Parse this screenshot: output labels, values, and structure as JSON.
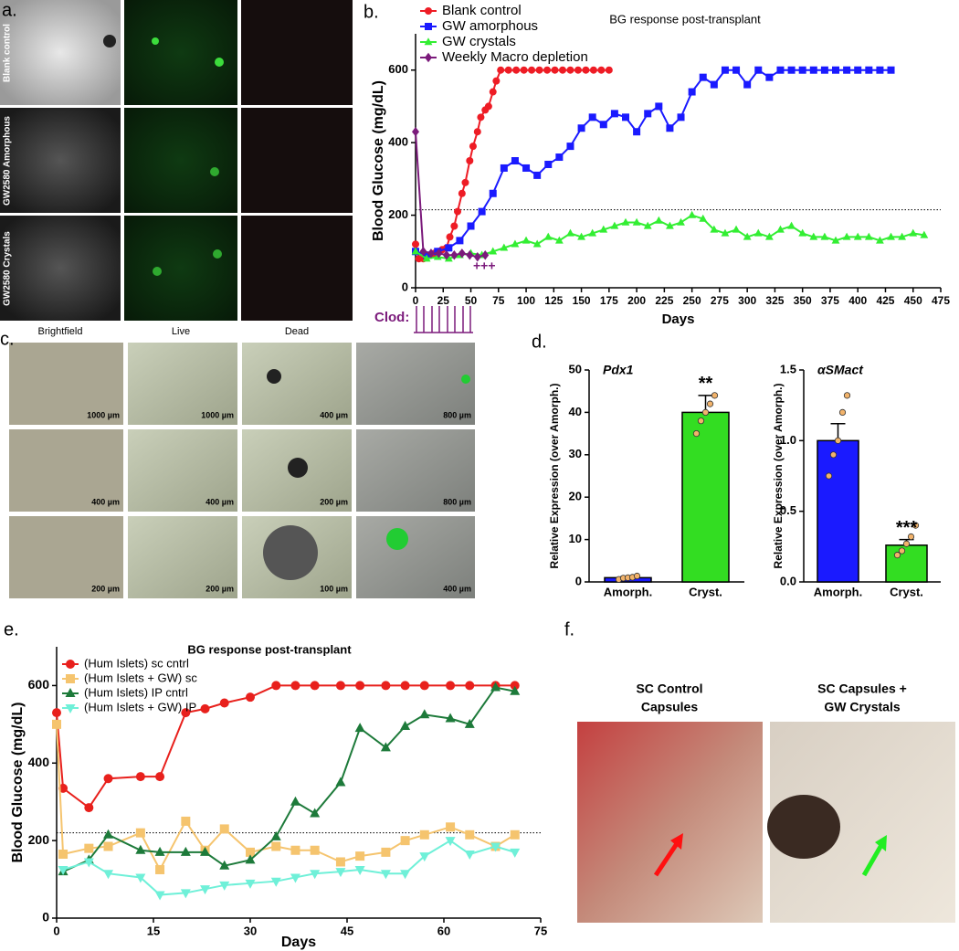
{
  "panels": {
    "a": {
      "letter": "a.",
      "row_labels": [
        "Blank control",
        "GW2580 Amorphous",
        "GW2580 Crystals"
      ],
      "column_labels": [
        "Brightfield",
        "Live",
        "Dead"
      ]
    },
    "b": {
      "letter": "b.",
      "treatment_label": "Clod:",
      "marker_label": "+++"
    },
    "c": {
      "letter": "c.",
      "scale_labels": [
        [
          "1000 µm",
          "1000 µm",
          "400 µm",
          "800 µm"
        ],
        [
          "400 µm",
          "400 µm",
          "200 µm",
          "800 µm"
        ],
        [
          "200 µm",
          "200 µm",
          "100 µm",
          "400 µm"
        ]
      ]
    },
    "d": {
      "letter": "d."
    },
    "e": {
      "letter": "e."
    },
    "f": {
      "letter": "f.",
      "photo_labels": [
        [
          "SC Control",
          "Capsules"
        ],
        [
          "SC Capsules +",
          "GW Crystals"
        ]
      ]
    }
  },
  "chart_data": [
    {
      "type": "line",
      "title": "BG response post-transplant",
      "xlabel": "Days",
      "ylabel": "Blood Glucose (mg/dL)",
      "xlim": [
        0,
        475
      ],
      "xticks": [
        0,
        25,
        50,
        75,
        100,
        125,
        150,
        175,
        200,
        225,
        250,
        275,
        300,
        325,
        350,
        375,
        400,
        425,
        450,
        475
      ],
      "ylim": [
        0,
        700
      ],
      "yticks": [
        0,
        200,
        400,
        600
      ],
      "reference_line": 215,
      "legend": "upper left",
      "series": [
        {
          "name": "Blank control",
          "color": "#ee1c25",
          "marker": "circle",
          "x": [
            0,
            3,
            7,
            10,
            14,
            17,
            21,
            24,
            28,
            31,
            35,
            38,
            42,
            45,
            49,
            52,
            56,
            59,
            63,
            66,
            70,
            73,
            77,
            84,
            91,
            98,
            105,
            112,
            119,
            126,
            133,
            140,
            147,
            154,
            161,
            168,
            175
          ],
          "values": [
            120,
            80,
            80,
            85,
            90,
            95,
            100,
            105,
            110,
            140,
            170,
            210,
            260,
            290,
            350,
            390,
            430,
            470,
            490,
            500,
            540,
            570,
            600,
            600,
            600,
            600,
            600,
            600,
            600,
            600,
            600,
            600,
            600,
            600,
            600,
            600,
            600
          ]
        },
        {
          "name": "GW amorphous",
          "color": "#1a1aff",
          "marker": "square",
          "x": [
            0,
            10,
            20,
            30,
            40,
            50,
            60,
            70,
            80,
            90,
            100,
            110,
            120,
            130,
            140,
            150,
            160,
            170,
            180,
            190,
            200,
            210,
            220,
            230,
            240,
            250,
            260,
            270,
            280,
            290,
            300,
            310,
            320,
            330,
            340,
            350,
            360,
            370,
            380,
            390,
            400,
            410,
            420,
            430
          ],
          "values": [
            100,
            90,
            100,
            110,
            130,
            170,
            210,
            260,
            330,
            350,
            330,
            310,
            340,
            360,
            390,
            440,
            470,
            450,
            480,
            470,
            430,
            480,
            500,
            440,
            470,
            540,
            580,
            560,
            600,
            600,
            560,
            600,
            580,
            600,
            600,
            600,
            600,
            600,
            600,
            600,
            600,
            600,
            600,
            600
          ]
        },
        {
          "name": "GW crystals",
          "color": "#33ee33",
          "marker": "triangle",
          "x": [
            0,
            10,
            20,
            30,
            40,
            50,
            60,
            70,
            80,
            90,
            100,
            110,
            120,
            130,
            140,
            150,
            160,
            170,
            180,
            190,
            200,
            210,
            220,
            230,
            240,
            250,
            260,
            270,
            280,
            290,
            300,
            310,
            320,
            330,
            340,
            350,
            360,
            370,
            380,
            390,
            400,
            410,
            420,
            430,
            440,
            450,
            460
          ],
          "values": [
            100,
            80,
            85,
            80,
            90,
            95,
            90,
            100,
            110,
            120,
            130,
            120,
            140,
            130,
            150,
            140,
            150,
            160,
            170,
            180,
            180,
            170,
            185,
            170,
            180,
            200,
            190,
            160,
            150,
            160,
            140,
            150,
            140,
            160,
            170,
            150,
            140,
            140,
            130,
            140,
            140,
            140,
            130,
            140,
            140,
            150,
            145
          ]
        },
        {
          "name": "Weekly Macro depletion",
          "color": "#7b1a7b",
          "marker": "diamond",
          "x": [
            0,
            7,
            14,
            21,
            28,
            35,
            42,
            49,
            56,
            63
          ],
          "values": [
            430,
            100,
            95,
            95,
            90,
            90,
            95,
            90,
            85,
            90
          ]
        }
      ]
    },
    {
      "type": "bar",
      "title": "Pdx1",
      "ylabel": "Relative Expression (over Amorph.)",
      "categories": [
        "Amorph.",
        "Cryst."
      ],
      "values": [
        1,
        40
      ],
      "errors": [
        0.3,
        4
      ],
      "colors": [
        "#1a1aff",
        "#33dd22"
      ],
      "points": [
        [
          0.6,
          0.9,
          1.0,
          1.1,
          1.4
        ],
        [
          35,
          38,
          40,
          42,
          44
        ]
      ],
      "point_color": "#f2b36b",
      "annotation": "**",
      "ylim": [
        0,
        50
      ],
      "yticks": [
        0,
        10,
        20,
        30,
        40,
        50
      ]
    },
    {
      "type": "bar",
      "title": "αSMact",
      "ylabel": "Relative Expression (over Amorph.)",
      "categories": [
        "Amorph.",
        "Cryst."
      ],
      "values": [
        1.0,
        0.26
      ],
      "errors": [
        0.12,
        0.04
      ],
      "colors": [
        "#1a1aff",
        "#33dd22"
      ],
      "points": [
        [
          0.75,
          0.9,
          1.0,
          1.2,
          1.32
        ],
        [
          0.19,
          0.22,
          0.27,
          0.32,
          0.4
        ]
      ],
      "point_color": "#f2b36b",
      "annotation": "***",
      "ylim": [
        0,
        1.5
      ],
      "yticks": [
        {
          "value": 0,
          "label": "0.0"
        },
        0.5,
        {
          "value": 1,
          "label": "1.0"
        },
        1.5
      ]
    },
    {
      "type": "line",
      "title": "BG response post-transplant",
      "xlabel": "Days",
      "ylabel": "Blood Glucose (mg/dL)",
      "xlim": [
        0,
        75
      ],
      "xticks": [
        0,
        15,
        30,
        45,
        60,
        75
      ],
      "ylim": [
        0,
        700
      ],
      "yticks": [
        0,
        200,
        400,
        600
      ],
      "reference_line": 220,
      "legend": "upper left",
      "series": [
        {
          "name": "(Hum Islets) sc cntrl",
          "color": "#e8201c",
          "marker": "circle",
          "x": [
            0,
            1,
            5,
            8,
            13,
            16,
            20,
            23,
            26,
            30,
            34,
            37,
            40,
            44,
            47,
            51,
            54,
            57,
            61,
            64,
            68,
            71
          ],
          "values": [
            530,
            335,
            285,
            360,
            365,
            365,
            530,
            540,
            555,
            570,
            600,
            600,
            600,
            600,
            600,
            600,
            600,
            600,
            600,
            600,
            600,
            600
          ]
        },
        {
          "name": "(Hum Islets + GW) sc",
          "color": "#f5c46e",
          "marker": "square",
          "x": [
            0,
            1,
            5,
            8,
            13,
            16,
            20,
            23,
            26,
            30,
            34,
            37,
            40,
            44,
            47,
            51,
            54,
            57,
            61,
            64,
            68,
            71
          ],
          "values": [
            500,
            165,
            180,
            185,
            220,
            125,
            250,
            175,
            230,
            170,
            185,
            175,
            175,
            145,
            160,
            170,
            200,
            215,
            235,
            215,
            185,
            215
          ]
        },
        {
          "name": "(Hum Islets) IP cntrl",
          "color": "#1d7a3a",
          "marker": "triangle",
          "x": [
            1,
            5,
            8,
            13,
            16,
            20,
            23,
            26,
            30,
            34,
            37,
            40,
            44,
            47,
            51,
            54,
            57,
            61,
            64,
            68,
            71
          ],
          "values": [
            120,
            150,
            215,
            175,
            170,
            170,
            170,
            135,
            150,
            210,
            300,
            270,
            350,
            490,
            440,
            495,
            525,
            515,
            500,
            595,
            585
          ]
        },
        {
          "name": "(Hum Islets + GW) IP",
          "color": "#6ff0d8",
          "marker": "triangle-down",
          "x": [
            1,
            5,
            8,
            13,
            16,
            20,
            23,
            26,
            30,
            34,
            37,
            40,
            44,
            47,
            51,
            54,
            57,
            61,
            64,
            68,
            71
          ],
          "values": [
            125,
            145,
            115,
            105,
            60,
            65,
            75,
            85,
            90,
            95,
            105,
            115,
            120,
            125,
            115,
            115,
            160,
            200,
            165,
            185,
            170
          ]
        }
      ]
    }
  ]
}
